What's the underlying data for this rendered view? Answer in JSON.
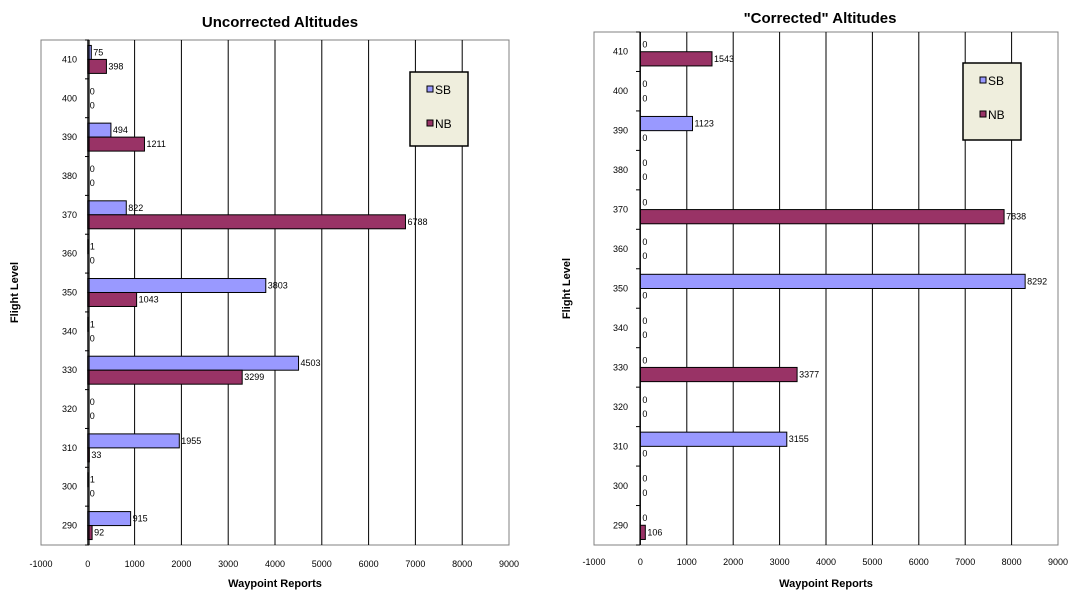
{
  "chart_data": [
    {
      "type": "bar",
      "orientation": "horizontal",
      "title": "Uncorrected Altitudes",
      "xlabel": "Waypoint Reports",
      "ylabel": "Flight Level",
      "xlim": [
        -1000,
        9000
      ],
      "xticks": [
        "-1000",
        "0",
        "1000",
        "2000",
        "3000",
        "4000",
        "5000",
        "6000",
        "7000",
        "8000",
        "9000"
      ],
      "grid": true,
      "legend_position": "top-right",
      "categories": [
        "410",
        "400",
        "390",
        "380",
        "370",
        "360",
        "350",
        "340",
        "330",
        "320",
        "310",
        "300",
        "290"
      ],
      "series": [
        {
          "name": "SB",
          "color": "#9999ff",
          "values": [
            75,
            0,
            494,
            0,
            822,
            1,
            3803,
            1,
            4503,
            0,
            1955,
            1,
            915
          ]
        },
        {
          "name": "NB",
          "color": "#993366",
          "values": [
            398,
            0,
            1211,
            0,
            6788,
            0,
            1043,
            0,
            3299,
            0,
            33,
            0,
            92
          ]
        }
      ]
    },
    {
      "type": "bar",
      "orientation": "horizontal",
      "title": "\"Corrected\" Altitudes",
      "xlabel": "Waypoint Reports",
      "ylabel": "Flight Level",
      "xlim": [
        -1000,
        9000
      ],
      "xticks": [
        "-1000",
        "0",
        "1000",
        "2000",
        "3000",
        "4000",
        "5000",
        "6000",
        "7000",
        "8000",
        "9000"
      ],
      "grid": true,
      "legend_position": "top-right",
      "categories": [
        "410",
        "400",
        "390",
        "380",
        "370",
        "360",
        "350",
        "340",
        "330",
        "320",
        "310",
        "300",
        "290"
      ],
      "series": [
        {
          "name": "SB",
          "color": "#9999ff",
          "values": [
            0,
            0,
            1123,
            0,
            0,
            0,
            8292,
            0,
            0,
            0,
            3155,
            0,
            0
          ]
        },
        {
          "name": "NB",
          "color": "#993366",
          "values": [
            1543,
            0,
            0,
            0,
            7838,
            0,
            0,
            0,
            3377,
            0,
            0,
            0,
            106
          ]
        }
      ]
    }
  ]
}
